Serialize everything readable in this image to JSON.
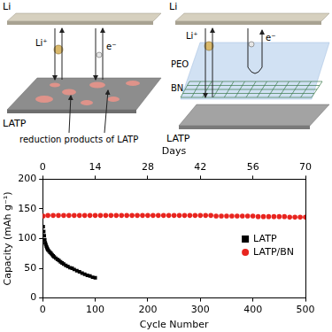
{
  "diagram": {
    "panels": [
      {
        "electrode": "Li",
        "ion": "Li⁺",
        "electron": "e⁻",
        "electrolyte": "LATP",
        "annotation": "reduction products of LATP"
      },
      {
        "electrode": "Li",
        "ion": "Li⁺",
        "electron": "e⁻",
        "interlayer": [
          "PEO",
          "BN"
        ],
        "electrolyte": "LATP"
      }
    ]
  },
  "chart_data": {
    "type": "scatter",
    "x_label": "Cycle Number",
    "y_label": "Capacity (mAh g⁻¹)",
    "x2_label": "Days",
    "xlim": [
      0,
      500
    ],
    "xticks": [
      0,
      100,
      200,
      300,
      400,
      500
    ],
    "x2lim": [
      0,
      70
    ],
    "x2ticks": [
      0,
      14,
      28,
      42,
      56,
      70
    ],
    "ylim": [
      0,
      200
    ],
    "yticks": [
      0,
      50,
      100,
      150,
      200
    ],
    "grid": false,
    "legend": "right",
    "series": [
      {
        "name": "LATP",
        "color": "#000000",
        "marker": "square",
        "x": [
          1,
          2,
          3,
          4,
          5,
          6,
          7,
          8,
          9,
          10,
          12,
          14,
          16,
          18,
          20,
          22,
          25,
          28,
          31,
          34,
          37,
          40,
          44,
          48,
          52,
          56,
          60,
          65,
          70,
          75,
          80,
          85,
          90,
          95,
          100
        ],
        "values": [
          120,
          112,
          105,
          98,
          93,
          90,
          87,
          85,
          83,
          81,
          79,
          77,
          75,
          73,
          71,
          69,
          67,
          65,
          63,
          61,
          59,
          57,
          55,
          53,
          51,
          50,
          48,
          46,
          44,
          42,
          40,
          38,
          37,
          35,
          34
        ]
      },
      {
        "name": "LATP/BN",
        "color": "#e8251f",
        "marker": "circle",
        "x": [
          1,
          10,
          20,
          30,
          40,
          50,
          60,
          70,
          80,
          90,
          100,
          110,
          120,
          130,
          140,
          150,
          160,
          170,
          180,
          190,
          200,
          210,
          220,
          230,
          240,
          250,
          260,
          270,
          280,
          290,
          300,
          310,
          320,
          330,
          340,
          350,
          360,
          370,
          380,
          390,
          400,
          410,
          420,
          430,
          440,
          450,
          460,
          470,
          480,
          490,
          500
        ],
        "values": [
          138,
          139,
          139,
          139,
          139,
          139,
          139,
          139,
          139,
          139,
          139,
          139,
          139,
          139,
          139,
          139,
          139,
          139,
          139,
          139,
          139,
          139,
          139,
          139,
          139,
          139,
          139,
          139,
          139,
          139,
          139,
          139,
          139,
          138,
          138,
          138,
          138,
          138,
          138,
          138,
          138,
          137,
          137,
          137,
          137,
          137,
          137,
          136,
          136,
          136,
          136
        ]
      }
    ]
  }
}
